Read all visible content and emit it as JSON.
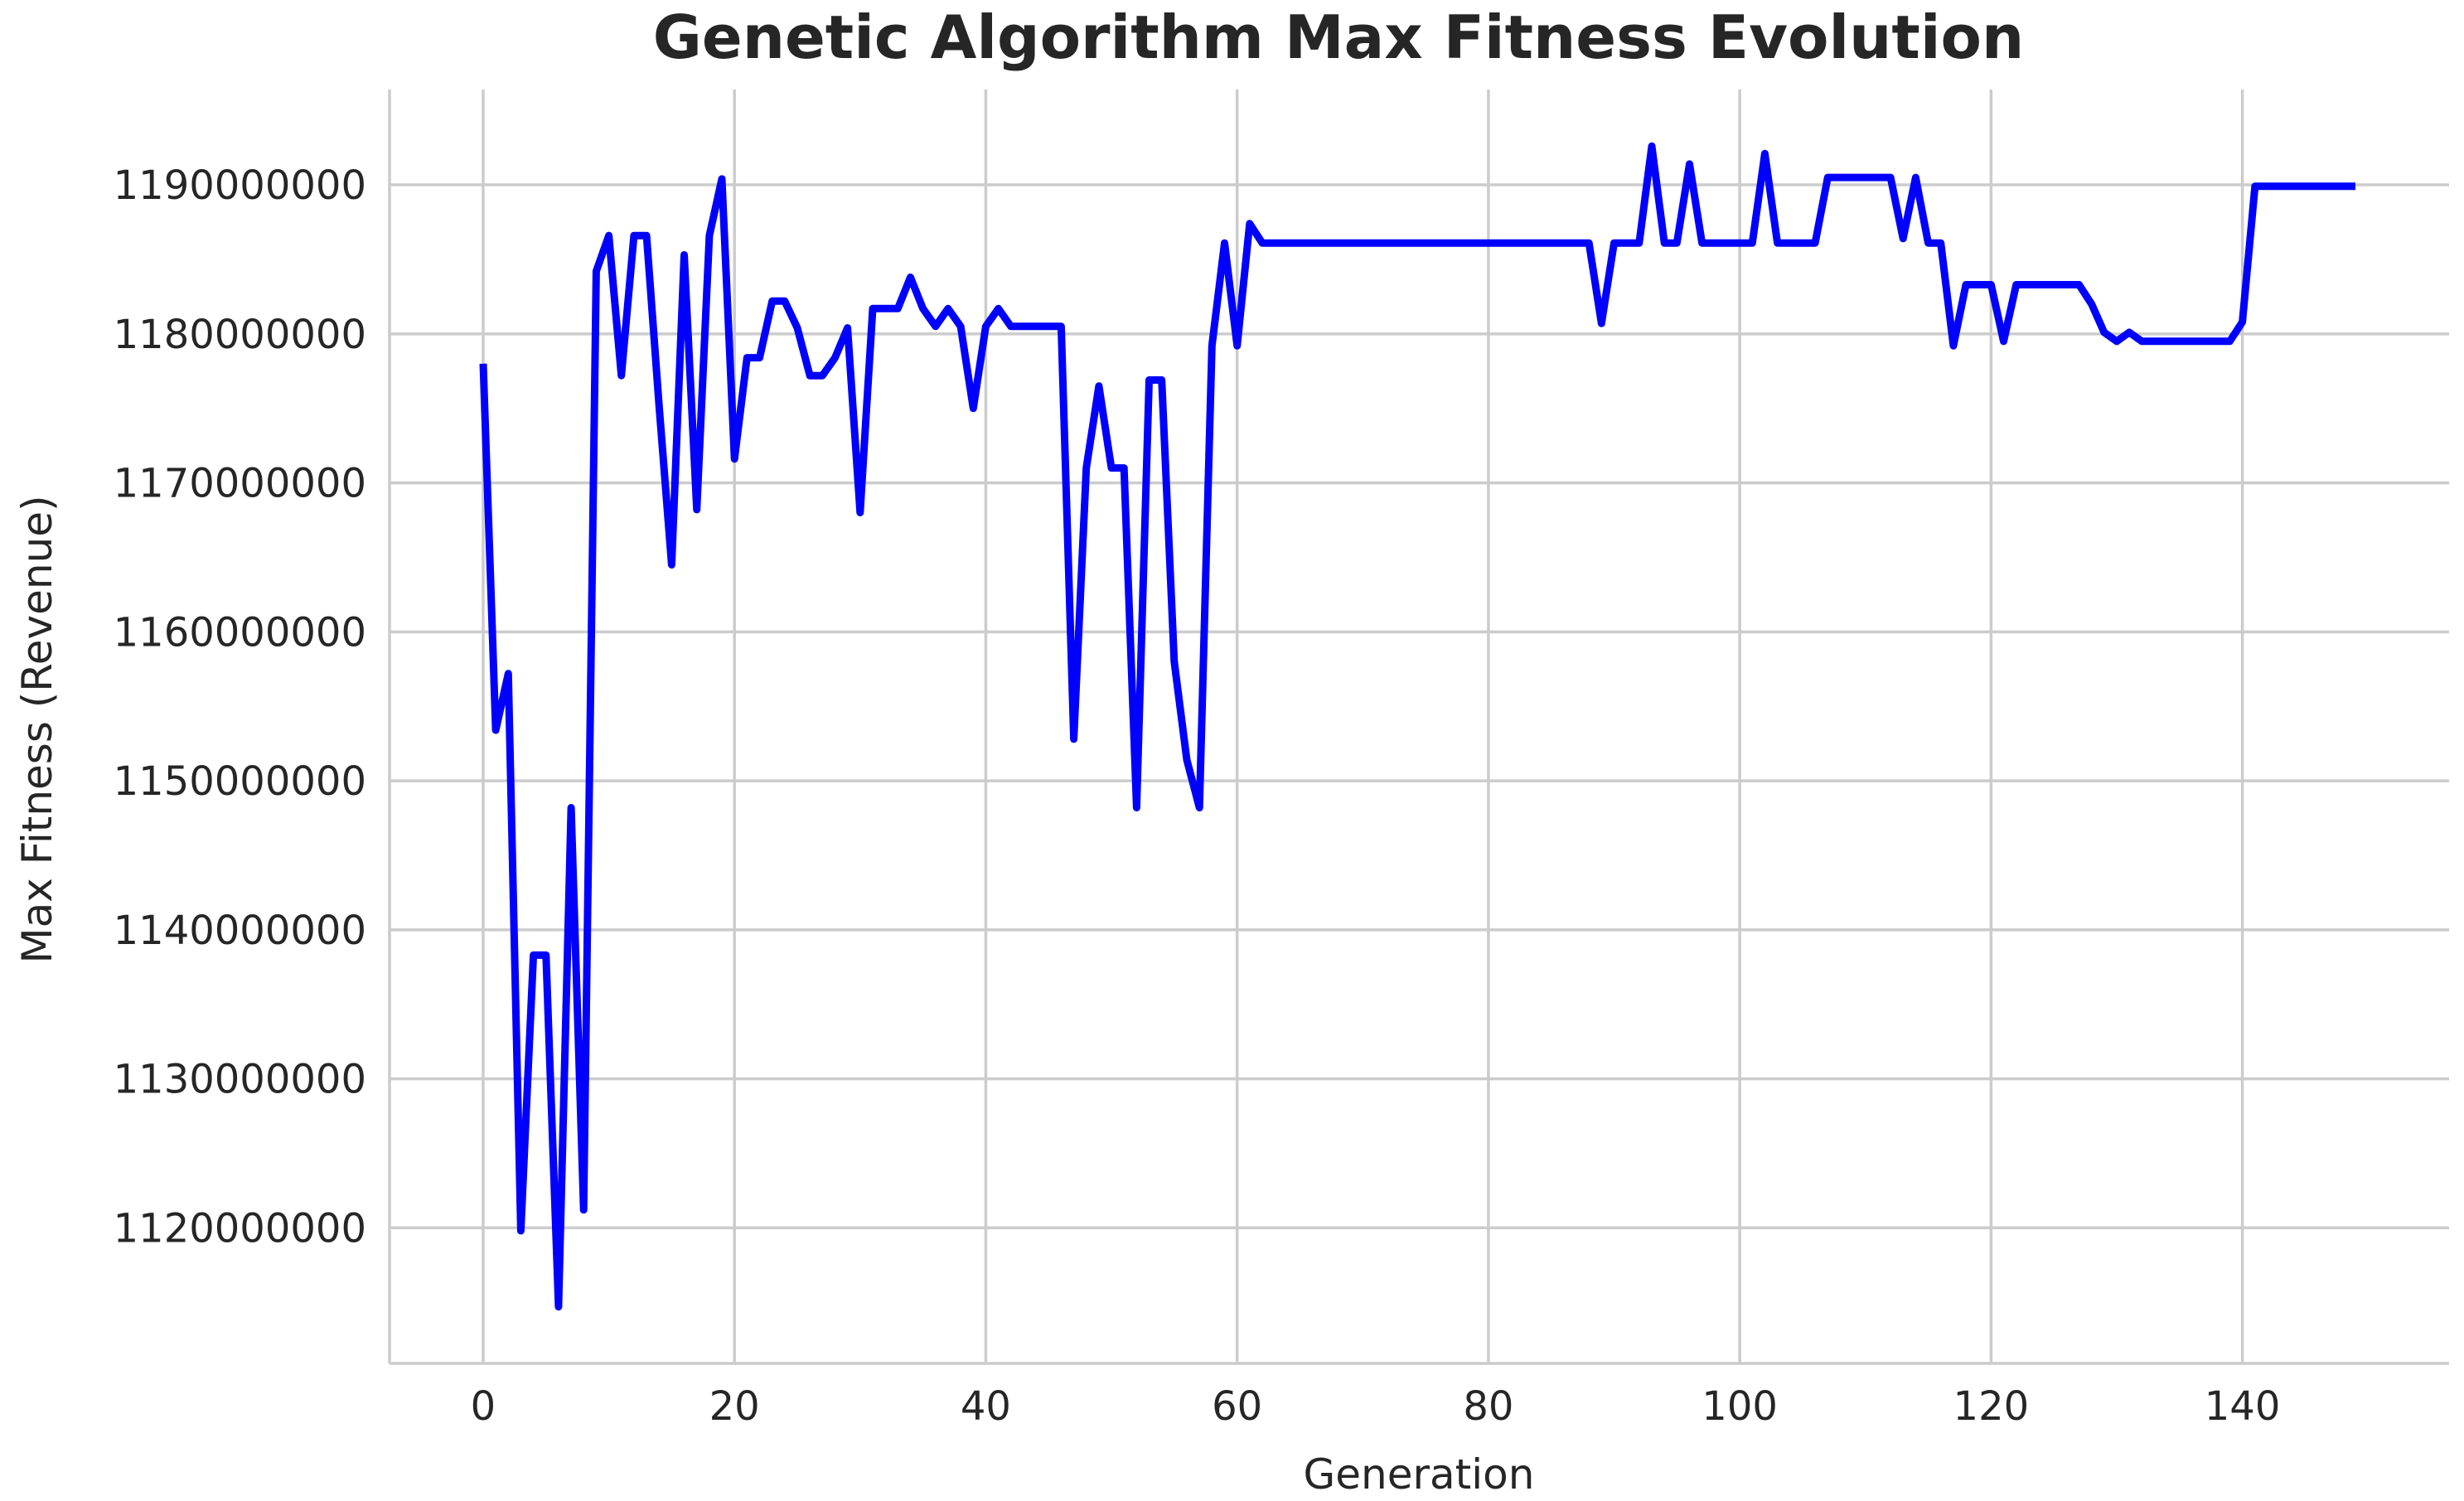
{
  "chart_data": {
    "type": "line",
    "title": "Genetic Algorithm Max Fitness Evolution",
    "xlabel": "Generation",
    "ylabel": "Max Fitness (Revenue)",
    "xlim": [
      -7.45,
      156.45
    ],
    "ylim": [
      1110900000,
      1196400000
    ],
    "xticks": [
      0,
      20,
      40,
      60,
      80,
      100,
      120,
      140
    ],
    "xtick_labels": [
      "0",
      "20",
      "40",
      "60",
      "80",
      "100",
      "120",
      "140"
    ],
    "yticks": [
      1120000000,
      1130000000,
      1140000000,
      1150000000,
      1160000000,
      1170000000,
      1180000000,
      1190000000
    ],
    "ytick_labels": [
      "1120000000",
      "1130000000",
      "1140000000",
      "1150000000",
      "1160000000",
      "1170000000",
      "1180000000",
      "1190000000"
    ],
    "grid": true,
    "series_color": "#0000ff",
    "series": [
      {
        "x": [
          0,
          1,
          2,
          3,
          4,
          5,
          6,
          7,
          8,
          9,
          10,
          11,
          12,
          13,
          14,
          15,
          16,
          17,
          18,
          19,
          20,
          21,
          22,
          23,
          24,
          25,
          26,
          27,
          28,
          29,
          30,
          31,
          32,
          33,
          34,
          35,
          36,
          37,
          38,
          39,
          40,
          41,
          42,
          43,
          44,
          45,
          46,
          47,
          48,
          49,
          50,
          51,
          52,
          53,
          54,
          55,
          56,
          57,
          58,
          59,
          60,
          61,
          62,
          63,
          64,
          65,
          66,
          67,
          68,
          69,
          70,
          71,
          72,
          73,
          74,
          75,
          76,
          77,
          78,
          79,
          80,
          81,
          82,
          83,
          84,
          85,
          86,
          87,
          88,
          89,
          90,
          91,
          92,
          93,
          94,
          95,
          96,
          97,
          98,
          99,
          100,
          101,
          102,
          103,
          104,
          105,
          106,
          107,
          108,
          109,
          110,
          111,
          112,
          113,
          114,
          115,
          116,
          117,
          118,
          119,
          120,
          121,
          122,
          123,
          124,
          125,
          126,
          127,
          128,
          129,
          130,
          131,
          132,
          133,
          134,
          135,
          136,
          137,
          138,
          139,
          140,
          141,
          142,
          143,
          144,
          145,
          146,
          147,
          148,
          149
        ],
        "values": [
          1178000000,
          1153400000,
          1157200000,
          1119800000,
          1138300000,
          1138300000,
          1114700000,
          1148200000,
          1121200000,
          1184200000,
          1186600000,
          1177200000,
          1186600000,
          1186600000,
          1175200000,
          1164500000,
          1185300000,
          1168200000,
          1186600000,
          1190400000,
          1171600000,
          1178400000,
          1178400000,
          1182200000,
          1182200000,
          1180400000,
          1177200000,
          1177200000,
          1178400000,
          1180400000,
          1168000000,
          1181700000,
          1181700000,
          1181700000,
          1183800000,
          1181700000,
          1180500000,
          1181700000,
          1180500000,
          1175000000,
          1180500000,
          1181700000,
          1180500000,
          1180500000,
          1180500000,
          1180500000,
          1180500000,
          1152800000,
          1171000000,
          1176500000,
          1171000000,
          1171000000,
          1148200000,
          1176900000,
          1176900000,
          1158000000,
          1151400000,
          1148200000,
          1179200000,
          1186100000,
          1179200000,
          1187400000,
          1186100000,
          1186100000,
          1186100000,
          1186100000,
          1186100000,
          1186100000,
          1186100000,
          1186100000,
          1186100000,
          1186100000,
          1186100000,
          1186100000,
          1186100000,
          1186100000,
          1186100000,
          1186100000,
          1186100000,
          1186100000,
          1186100000,
          1186100000,
          1186100000,
          1186100000,
          1186100000,
          1186100000,
          1186100000,
          1186100000,
          1186100000,
          1180700000,
          1186100000,
          1186100000,
          1186100000,
          1192600000,
          1186100000,
          1186100000,
          1191400000,
          1186100000,
          1186100000,
          1186100000,
          1186100000,
          1186100000,
          1192100000,
          1186100000,
          1186100000,
          1186100000,
          1186100000,
          1190500000,
          1190500000,
          1190500000,
          1190500000,
          1190500000,
          1190500000,
          1186400000,
          1190500000,
          1186100000,
          1186100000,
          1179200000,
          1183300000,
          1183300000,
          1183300000,
          1179500000,
          1183300000,
          1183300000,
          1183300000,
          1183300000,
          1183300000,
          1183300000,
          1182000000,
          1180100000,
          1179500000,
          1180100000,
          1179500000,
          1179500000,
          1179500000,
          1179500000,
          1179500000,
          1179500000,
          1179500000,
          1179500000,
          1180800000,
          1189900000,
          1189900000,
          1189900000,
          1189900000,
          1189900000,
          1189900000,
          1189900000,
          1189900000,
          1189900000
        ]
      }
    ]
  }
}
